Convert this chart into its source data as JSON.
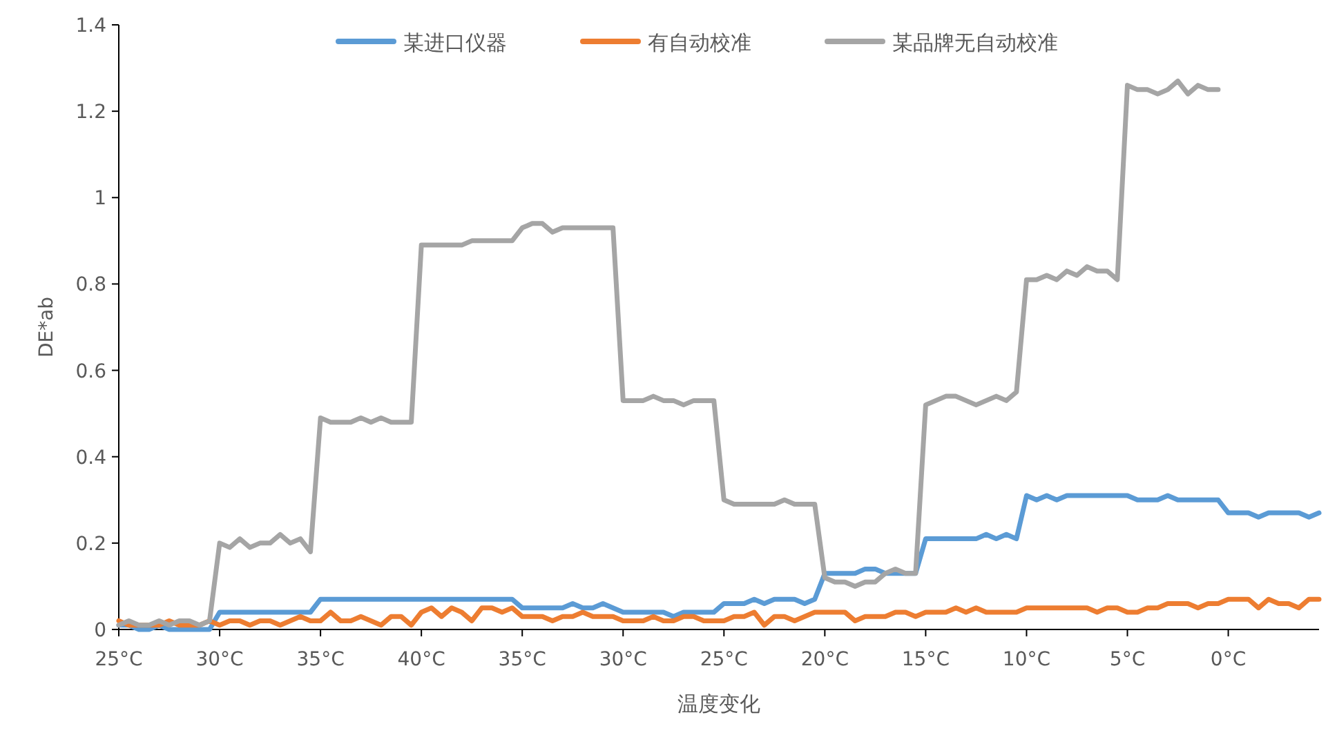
{
  "chart_data": {
    "type": "line",
    "xlabel": "温度变化",
    "ylabel": "DE*ab",
    "legend": "top",
    "ylim": [
      0,
      1.4
    ],
    "yticks": [
      0,
      0.2,
      0.4,
      0.6,
      0.8,
      1,
      1.2,
      1.4
    ],
    "categories": [
      "25°C",
      null,
      null,
      null,
      null,
      null,
      null,
      null,
      null,
      null,
      "30°C",
      null,
      null,
      null,
      null,
      null,
      null,
      null,
      null,
      null,
      "35°C",
      null,
      null,
      null,
      null,
      null,
      null,
      null,
      null,
      null,
      "40°C",
      null,
      null,
      null,
      null,
      null,
      null,
      null,
      null,
      null,
      "35°C",
      null,
      null,
      null,
      null,
      null,
      null,
      null,
      null,
      null,
      "30°C",
      null,
      null,
      null,
      null,
      null,
      null,
      null,
      null,
      null,
      "25°C",
      null,
      null,
      null,
      null,
      null,
      null,
      null,
      null,
      null,
      "20°C",
      null,
      null,
      null,
      null,
      null,
      null,
      null,
      null,
      null,
      "15°C",
      null,
      null,
      null,
      null,
      null,
      null,
      null,
      null,
      null,
      "10°C",
      null,
      null,
      null,
      null,
      null,
      null,
      null,
      null,
      null,
      "5°C",
      null,
      null,
      null,
      null,
      null,
      null,
      null,
      null,
      null,
      "0°C",
      null,
      null,
      null,
      null,
      null,
      null,
      null,
      null,
      null
    ],
    "series": [
      {
        "name": "某进口仪器",
        "color": "#5b9bd5",
        "values": [
          0.01,
          0.01,
          0,
          0,
          0.01,
          0,
          0,
          0,
          0,
          0,
          0.04,
          0.04,
          0.04,
          0.04,
          0.04,
          0.04,
          0.04,
          0.04,
          0.04,
          0.04,
          0.07,
          0.07,
          0.07,
          0.07,
          0.07,
          0.07,
          0.07,
          0.07,
          0.07,
          0.07,
          0.07,
          0.07,
          0.07,
          0.07,
          0.07,
          0.07,
          0.07,
          0.07,
          0.07,
          0.07,
          0.05,
          0.05,
          0.05,
          0.05,
          0.05,
          0.06,
          0.05,
          0.05,
          0.06,
          0.05,
          0.04,
          0.04,
          0.04,
          0.04,
          0.04,
          0.03,
          0.04,
          0.04,
          0.04,
          0.04,
          0.06,
          0.06,
          0.06,
          0.07,
          0.06,
          0.07,
          0.07,
          0.07,
          0.06,
          0.07,
          0.13,
          0.13,
          0.13,
          0.13,
          0.14,
          0.14,
          0.13,
          0.13,
          0.13,
          0.13,
          0.21,
          0.21,
          0.21,
          0.21,
          0.21,
          0.21,
          0.22,
          0.21,
          0.22,
          0.21,
          0.31,
          0.3,
          0.31,
          0.3,
          0.31,
          0.31,
          0.31,
          0.31,
          0.31,
          0.31,
          0.31,
          0.3,
          0.3,
          0.3,
          0.31,
          0.3,
          0.3,
          0.3,
          0.3,
          0.3,
          0.27,
          0.27,
          0.27,
          0.26,
          0.27,
          0.27,
          0.27,
          0.27,
          0.26,
          0.27
        ]
      },
      {
        "name": "有自动校准",
        "color": "#ed7d31",
        "values": [
          0.02,
          0.01,
          0.01,
          0.01,
          0.01,
          0.02,
          0.01,
          0.01,
          0.01,
          0.02,
          0.01,
          0.02,
          0.02,
          0.01,
          0.02,
          0.02,
          0.01,
          0.02,
          0.03,
          0.02,
          0.02,
          0.04,
          0.02,
          0.02,
          0.03,
          0.02,
          0.01,
          0.03,
          0.03,
          0.01,
          0.04,
          0.05,
          0.03,
          0.05,
          0.04,
          0.02,
          0.05,
          0.05,
          0.04,
          0.05,
          0.03,
          0.03,
          0.03,
          0.02,
          0.03,
          0.03,
          0.04,
          0.03,
          0.03,
          0.03,
          0.02,
          0.02,
          0.02,
          0.03,
          0.02,
          0.02,
          0.03,
          0.03,
          0.02,
          0.02,
          0.02,
          0.03,
          0.03,
          0.04,
          0.01,
          0.03,
          0.03,
          0.02,
          0.03,
          0.04,
          0.04,
          0.04,
          0.04,
          0.02,
          0.03,
          0.03,
          0.03,
          0.04,
          0.04,
          0.03,
          0.04,
          0.04,
          0.04,
          0.05,
          0.04,
          0.05,
          0.04,
          0.04,
          0.04,
          0.04,
          0.05,
          0.05,
          0.05,
          0.05,
          0.05,
          0.05,
          0.05,
          0.04,
          0.05,
          0.05,
          0.04,
          0.04,
          0.05,
          0.05,
          0.06,
          0.06,
          0.06,
          0.05,
          0.06,
          0.06,
          0.07,
          0.07,
          0.07,
          0.05,
          0.07,
          0.06,
          0.06,
          0.05,
          0.07,
          0.07
        ]
      },
      {
        "name": "某品牌无自动校准",
        "color": "#a5a5a5",
        "values": [
          0.01,
          0.02,
          0.01,
          0.01,
          0.02,
          0.01,
          0.02,
          0.02,
          0.01,
          0.02,
          0.2,
          0.19,
          0.21,
          0.19,
          0.2,
          0.2,
          0.22,
          0.2,
          0.21,
          0.18,
          0.49,
          0.48,
          0.48,
          0.48,
          0.49,
          0.48,
          0.49,
          0.48,
          0.48,
          0.48,
          0.89,
          0.89,
          0.89,
          0.89,
          0.89,
          0.9,
          0.9,
          0.9,
          0.9,
          0.9,
          0.93,
          0.94,
          0.94,
          0.92,
          0.93,
          0.93,
          0.93,
          0.93,
          0.93,
          0.93,
          0.53,
          0.53,
          0.53,
          0.54,
          0.53,
          0.53,
          0.52,
          0.53,
          0.53,
          0.53,
          0.3,
          0.29,
          0.29,
          0.29,
          0.29,
          0.29,
          0.3,
          0.29,
          0.29,
          0.29,
          0.12,
          0.11,
          0.11,
          0.1,
          0.11,
          0.11,
          0.13,
          0.14,
          0.13,
          0.13,
          0.52,
          0.53,
          0.54,
          0.54,
          0.53,
          0.52,
          0.53,
          0.54,
          0.53,
          0.55,
          0.81,
          0.81,
          0.82,
          0.81,
          0.83,
          0.82,
          0.84,
          0.83,
          0.83,
          0.81,
          1.26,
          1.25,
          1.25,
          1.24,
          1.25,
          1.27,
          1.24,
          1.26,
          1.25,
          1.25,
          null,
          null,
          null,
          null,
          null,
          null,
          null,
          null,
          null,
          null
        ]
      }
    ]
  }
}
